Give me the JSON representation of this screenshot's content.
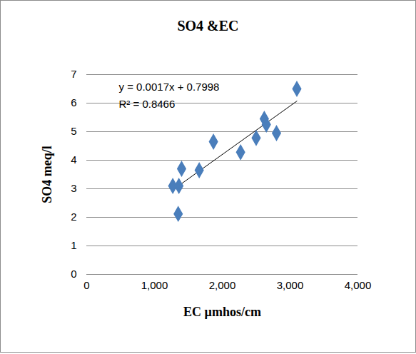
{
  "chart_data": {
    "type": "scatter",
    "title": "SO4 &EC",
    "x_label": "EC µmhos/cm",
    "y_label": "SO4 meq/l",
    "x": [
      1270,
      1360,
      1350,
      1400,
      1660,
      1870,
      2270,
      2500,
      2620,
      2650,
      2800,
      3100
    ],
    "values": [
      3.1,
      3.1,
      2.12,
      3.7,
      3.65,
      4.65,
      4.28,
      4.78,
      5.45,
      5.25,
      4.95,
      6.5
    ],
    "color": "#4a7ebb",
    "marker": "diamond",
    "trendline": {
      "x": [
        1270,
        3100
      ],
      "y": [
        2.96,
        6.07
      ],
      "color": "#000000"
    },
    "annotations": [
      "y = 0.0017x + 0.7998",
      "R² = 0.8466"
    ],
    "xlim": [
      0,
      4000
    ],
    "xticks": [
      0,
      1000,
      2000,
      3000,
      4000
    ],
    "ylim": [
      0,
      7
    ],
    "yticks": [
      0,
      1,
      2,
      3,
      4,
      5,
      6,
      7
    ],
    "grid": "y"
  }
}
